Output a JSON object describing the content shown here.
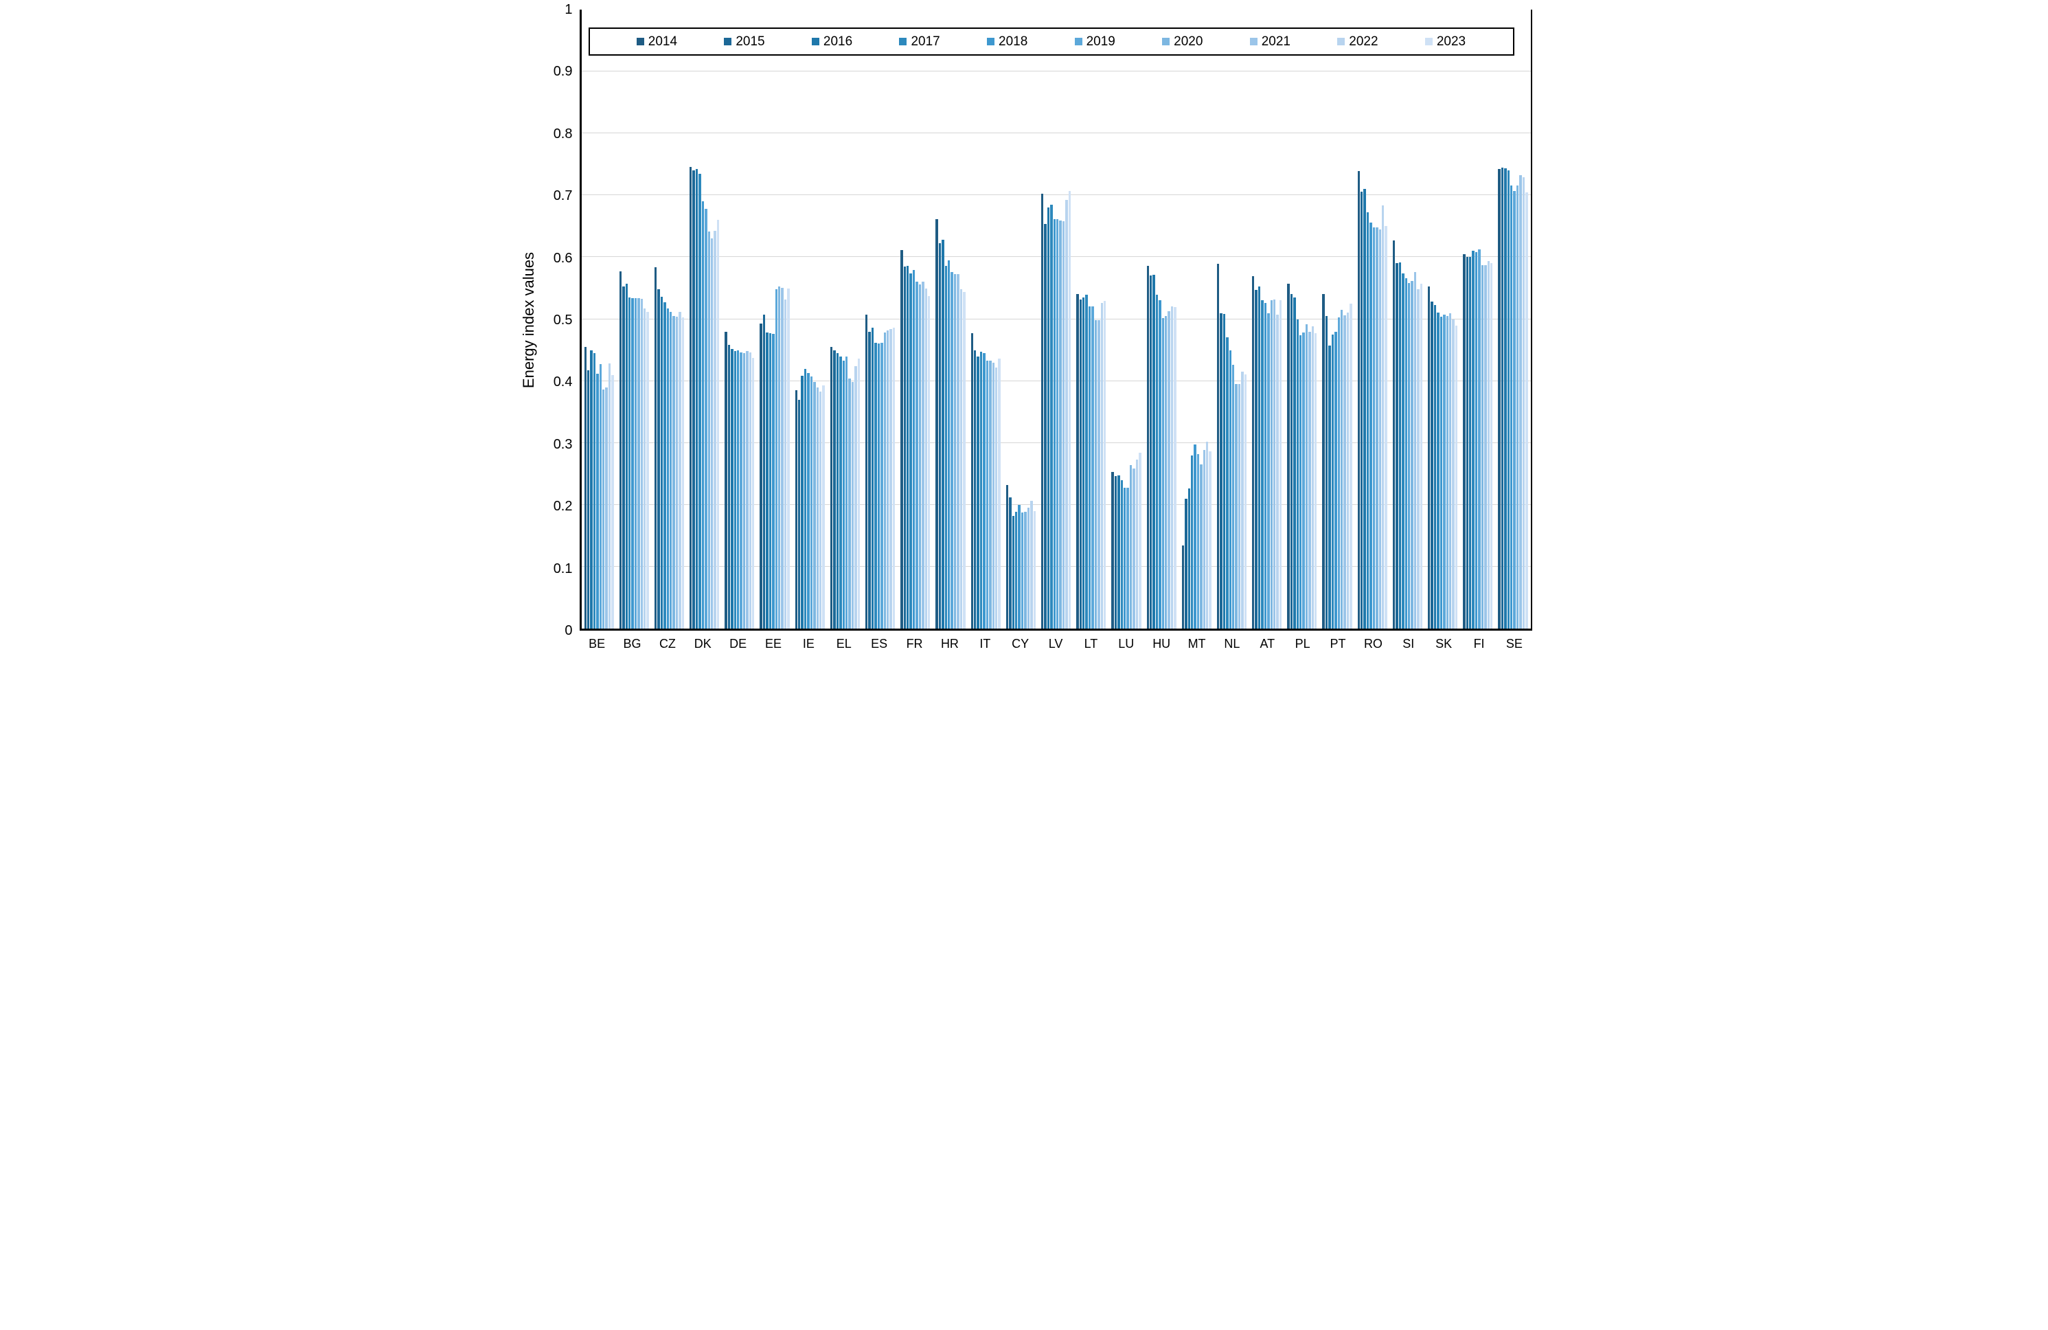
{
  "chart_data": {
    "type": "bar",
    "title": "",
    "xlabel": "",
    "ylabel": "Energy index values",
    "ylim": [
      0,
      1
    ],
    "grid": "horizontal",
    "legend_position": "top",
    "yticks": [
      1,
      0.9,
      0.8,
      0.7,
      0.6,
      0.5,
      0.4,
      0.3,
      0.2,
      0.1,
      0
    ],
    "ytick_labels": [
      "1",
      "0.9",
      "0.8",
      "0.7",
      "0.6",
      "0.5",
      "0.4",
      "0.3",
      "0.2",
      "0.1",
      "0"
    ],
    "categories": [
      "BE",
      "BG",
      "CZ",
      "DK",
      "DE",
      "EE",
      "IE",
      "EL",
      "ES",
      "FR",
      "HR",
      "IT",
      "CY",
      "LV",
      "LT",
      "LU",
      "HU",
      "MT",
      "NL",
      "AT",
      "PL",
      "PT",
      "RO",
      "SI",
      "SK",
      "FI",
      "SE"
    ],
    "palette": [
      "#1f5c84",
      "#1c6897",
      "#1f78ab",
      "#2d89bd",
      "#3e98cf",
      "#5ca8da",
      "#7db7e1",
      "#9bc5e9",
      "#b8d4ef",
      "#cfe1f5"
    ],
    "series": [
      {
        "name": "2014",
        "color": "#1f5c84",
        "values": [
          0.455,
          0.577,
          0.584,
          0.746,
          0.48,
          0.493,
          0.385,
          0.455,
          0.507,
          0.612,
          0.661,
          0.477,
          0.232,
          0.703,
          0.54,
          0.253,
          0.586,
          0.134,
          0.589,
          0.569,
          0.557,
          0.541,
          0.739,
          0.627,
          0.553,
          0.605,
          0.743
        ]
      },
      {
        "name": "2015",
        "color": "#1c6897",
        "values": [
          0.417,
          0.553,
          0.548,
          0.74,
          0.458,
          0.507,
          0.37,
          0.449,
          0.479,
          0.585,
          0.623,
          0.45,
          0.212,
          0.654,
          0.532,
          0.246,
          0.57,
          0.21,
          0.51,
          0.547,
          0.54,
          0.505,
          0.706,
          0.59,
          0.528,
          0.6,
          0.745
        ]
      },
      {
        "name": "2016",
        "color": "#1f78ab",
        "values": [
          0.45,
          0.557,
          0.536,
          0.742,
          0.452,
          0.478,
          0.408,
          0.445,
          0.486,
          0.586,
          0.628,
          0.44,
          0.182,
          0.68,
          0.535,
          0.248,
          0.572,
          0.226,
          0.508,
          0.553,
          0.535,
          0.457,
          0.71,
          0.592,
          0.523,
          0.6,
          0.744
        ]
      },
      {
        "name": "2017",
        "color": "#2d89bd",
        "values": [
          0.445,
          0.535,
          0.527,
          0.735,
          0.448,
          0.477,
          0.42,
          0.44,
          0.462,
          0.574,
          0.586,
          0.447,
          0.189,
          0.685,
          0.539,
          0.24,
          0.539,
          0.28,
          0.471,
          0.531,
          0.5,
          0.475,
          0.673,
          0.574,
          0.511,
          0.611,
          0.74
        ]
      },
      {
        "name": "2018",
        "color": "#3e98cf",
        "values": [
          0.412,
          0.534,
          0.517,
          0.69,
          0.45,
          0.476,
          0.413,
          0.433,
          0.461,
          0.579,
          0.595,
          0.445,
          0.2,
          0.661,
          0.52,
          0.227,
          0.53,
          0.298,
          0.449,
          0.526,
          0.474,
          0.48,
          0.656,
          0.566,
          0.504,
          0.608,
          0.716
        ]
      },
      {
        "name": "2019",
        "color": "#5ca8da",
        "values": [
          0.427,
          0.534,
          0.512,
          0.678,
          0.446,
          0.548,
          0.407,
          0.44,
          0.462,
          0.561,
          0.576,
          0.433,
          0.188,
          0.662,
          0.521,
          0.227,
          0.502,
          0.282,
          0.426,
          0.509,
          0.478,
          0.503,
          0.648,
          0.558,
          0.507,
          0.613,
          0.707
        ]
      },
      {
        "name": "2020",
        "color": "#7db7e1",
        "values": [
          0.386,
          0.534,
          0.505,
          0.642,
          0.445,
          0.553,
          0.398,
          0.404,
          0.478,
          0.556,
          0.573,
          0.433,
          0.189,
          0.659,
          0.498,
          0.264,
          0.505,
          0.265,
          0.395,
          0.53,
          0.492,
          0.515,
          0.648,
          0.562,
          0.505,
          0.587,
          0.716
        ]
      },
      {
        "name": "2021",
        "color": "#9bc5e9",
        "values": [
          0.39,
          0.533,
          0.504,
          0.63,
          0.448,
          0.551,
          0.39,
          0.398,
          0.482,
          0.561,
          0.573,
          0.429,
          0.195,
          0.658,
          0.498,
          0.259,
          0.513,
          0.289,
          0.395,
          0.532,
          0.48,
          0.506,
          0.645,
          0.576,
          0.51,
          0.587,
          0.732
        ]
      },
      {
        "name": "2022",
        "color": "#b8d4ef",
        "values": [
          0.428,
          0.517,
          0.512,
          0.643,
          0.446,
          0.532,
          0.383,
          0.424,
          0.484,
          0.549,
          0.548,
          0.422,
          0.207,
          0.693,
          0.526,
          0.273,
          0.52,
          0.302,
          0.415,
          0.507,
          0.488,
          0.511,
          0.684,
          0.548,
          0.5,
          0.594,
          0.729
        ]
      },
      {
        "name": "2023",
        "color": "#cfe1f5",
        "values": [
          0.41,
          0.512,
          0.503,
          0.66,
          0.437,
          0.549,
          0.393,
          0.436,
          0.486,
          0.537,
          0.544,
          0.436,
          0.19,
          0.707,
          0.529,
          0.284,
          0.519,
          0.286,
          0.411,
          0.53,
          0.477,
          0.525,
          0.65,
          0.557,
          0.49,
          0.591,
          0.705
        ]
      }
    ]
  }
}
